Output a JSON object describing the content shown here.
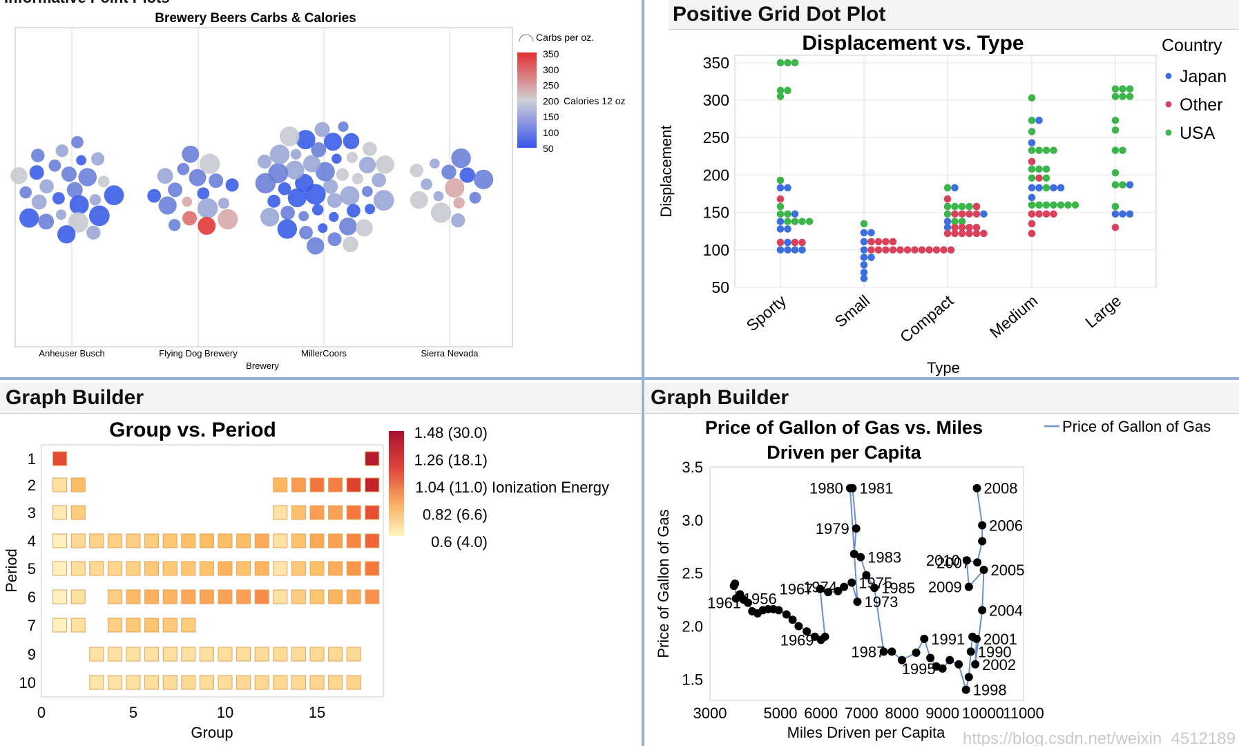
{
  "colors": {
    "japan": "#3b6fe0",
    "other": "#d9425a",
    "usa": "#3cb54a",
    "line": "#6a8fd0"
  },
  "panels": {
    "tl_header": "Informative Point Plots",
    "tr_header": "Positive Grid Dot Plot",
    "bl_header": "Graph Builder",
    "br_header": "Graph Builder"
  },
  "watermark": "https://blog.csdn.net/weixin_4512189",
  "chart_data": [
    {
      "id": "brewery",
      "type": "scatter",
      "title": "Brewery Beers Carbs & Calories",
      "xlabel": "Brewery",
      "categories": [
        "Anheuser Busch",
        "Flying Dog Brewery",
        "MillerCoors",
        "Sierra Nevada"
      ],
      "color_legend": {
        "title": "Carbs per oz.",
        "ticks": [
          "350",
          "300",
          "250",
          "200",
          "150",
          "100",
          "50"
        ]
      },
      "size_legend": {
        "title": "Calories 12 oz"
      },
      "cluster_counts": [
        26,
        18,
        48,
        14
      ]
    },
    {
      "id": "dotplot",
      "type": "scatter",
      "title": "Displacement vs. Type",
      "xlabel": "Type",
      "ylabel": "Displacement",
      "ylim": [
        50,
        360
      ],
      "yticks": [
        "350",
        "300",
        "250",
        "200",
        "150",
        "100",
        "50"
      ],
      "categories": [
        "Sporty",
        "Small",
        "Compact",
        "Medium",
        "Large"
      ],
      "legend": {
        "title": "Country",
        "items": [
          "Japan",
          "Other",
          "USA"
        ]
      },
      "series": [
        {
          "name": "Sporty",
          "rows": [
            [
              350,
              "UUU"
            ],
            [
              313,
              "UU"
            ],
            [
              305,
              "U"
            ],
            [
              193,
              "U"
            ],
            [
              183,
              "JJ"
            ],
            [
              168,
              "O"
            ],
            [
              158,
              "U"
            ],
            [
              148,
              "UUJ"
            ],
            [
              138,
              "JUUUU"
            ],
            [
              128,
              "JJ"
            ],
            [
              110,
              "OJOO"
            ],
            [
              100,
              "JJJJ"
            ]
          ]
        },
        {
          "name": "Small",
          "rows": [
            [
              135,
              "U"
            ],
            [
              123,
              "JJ"
            ],
            [
              111,
              "JOOOO"
            ],
            [
              100,
              "JOOOOOOOOOOOO"
            ],
            [
              90,
              "JJ"
            ],
            [
              80,
              "J"
            ],
            [
              70,
              "J"
            ],
            [
              62,
              "J"
            ]
          ]
        },
        {
          "name": "Compact",
          "rows": [
            [
              183,
              "UJ"
            ],
            [
              168,
              "O"
            ],
            [
              158,
              "UUUUO"
            ],
            [
              148,
              "UOOOOJ"
            ],
            [
              138,
              "JUU"
            ],
            [
              130,
              "JOOOO"
            ],
            [
              122,
              "OOOOOO"
            ]
          ]
        },
        {
          "name": "Medium",
          "rows": [
            [
              303,
              "U"
            ],
            [
              273,
              "UJ"
            ],
            [
              258,
              "U"
            ],
            [
              243,
              "J"
            ],
            [
              233,
              "UUUU"
            ],
            [
              218,
              "O"
            ],
            [
              208,
              "UUU"
            ],
            [
              196,
              "UOU"
            ],
            [
              183,
              "JJUJJ"
            ],
            [
              170,
              "J"
            ],
            [
              160,
              "UUUUUUU"
            ],
            [
              148,
              "OOOO"
            ],
            [
              135,
              "O"
            ],
            [
              122,
              "O"
            ]
          ]
        },
        {
          "name": "Large",
          "rows": [
            [
              315,
              "UUU"
            ],
            [
              305,
              "UUU"
            ],
            [
              273,
              "U"
            ],
            [
              260,
              "U"
            ],
            [
              233,
              "UU"
            ],
            [
              203,
              "U"
            ],
            [
              187,
              "UUJ"
            ],
            [
              158,
              "U"
            ],
            [
              148,
              "JJJ"
            ],
            [
              130,
              "O"
            ]
          ]
        }
      ]
    },
    {
      "id": "periodic",
      "type": "heatmap",
      "title": "Group vs. Period",
      "xlabel": "Group",
      "ylabel": "Period",
      "xticks": [
        "0",
        "5",
        "10",
        "15"
      ],
      "yticks": [
        "1",
        "2",
        "3",
        "4",
        "5",
        "6",
        "7",
        "9",
        "10"
      ],
      "legend": {
        "title": "Ionization Energy",
        "ticks": [
          "1.48 (30.0)",
          "1.26 (18.1)",
          "1.04 (11.0)",
          "0.82 (6.6)",
          "0.6 (4.0)"
        ]
      },
      "rows": [
        {
          "period": "1",
          "cells": [
            [
              1,
              1.17
            ],
            [
              18,
              1.42
            ]
          ]
        },
        {
          "period": "2",
          "cells": [
            [
              1,
              0.66
            ],
            [
              2,
              0.82
            ],
            [
              13,
              0.84
            ],
            [
              14,
              0.93
            ],
            [
              15,
              1.05
            ],
            [
              16,
              1.02
            ],
            [
              17,
              1.2
            ],
            [
              18,
              1.36
            ]
          ]
        },
        {
          "period": "3",
          "cells": [
            [
              1,
              0.63
            ],
            [
              2,
              0.76
            ],
            [
              13,
              0.66
            ],
            [
              14,
              0.81
            ],
            [
              15,
              0.92
            ],
            [
              16,
              0.91
            ],
            [
              17,
              1.04
            ],
            [
              18,
              1.16
            ]
          ]
        },
        {
          "period": "4",
          "cells": [
            [
              1,
              0.6
            ],
            [
              2,
              0.7
            ],
            [
              3,
              0.73
            ],
            [
              4,
              0.74
            ],
            [
              5,
              0.75
            ],
            [
              6,
              0.76
            ],
            [
              7,
              0.78
            ],
            [
              8,
              0.81
            ],
            [
              9,
              0.82
            ],
            [
              10,
              0.82
            ],
            [
              11,
              0.82
            ],
            [
              12,
              0.88
            ],
            [
              13,
              0.66
            ],
            [
              14,
              0.8
            ],
            [
              15,
              0.89
            ],
            [
              16,
              0.91
            ],
            [
              17,
              1.0
            ],
            [
              18,
              1.1
            ]
          ]
        },
        {
          "period": "5",
          "cells": [
            [
              1,
              0.6
            ],
            [
              2,
              0.68
            ],
            [
              3,
              0.7
            ],
            [
              4,
              0.72
            ],
            [
              5,
              0.74
            ],
            [
              6,
              0.77
            ],
            [
              7,
              0.77
            ],
            [
              8,
              0.79
            ],
            [
              9,
              0.8
            ],
            [
              10,
              0.86
            ],
            [
              11,
              0.8
            ],
            [
              12,
              0.85
            ],
            [
              13,
              0.65
            ],
            [
              14,
              0.77
            ],
            [
              15,
              0.81
            ],
            [
              16,
              0.87
            ],
            [
              17,
              0.95
            ],
            [
              18,
              1.04
            ]
          ]
        },
        {
          "period": "6",
          "cells": [
            [
              1,
              0.6
            ],
            [
              2,
              0.67
            ],
            [
              4,
              0.75
            ],
            [
              5,
              0.83
            ],
            [
              6,
              0.86
            ],
            [
              7,
              0.85
            ],
            [
              8,
              0.89
            ],
            [
              9,
              0.9
            ],
            [
              10,
              0.91
            ],
            [
              11,
              0.92
            ],
            [
              12,
              0.98
            ],
            [
              13,
              0.66
            ],
            [
              14,
              0.75
            ],
            [
              15,
              0.79
            ],
            [
              16,
              0.85
            ],
            [
              17,
              0.87
            ],
            [
              18,
              0.96
            ]
          ]
        },
        {
          "period": "7",
          "cells": [
            [
              1,
              0.6
            ],
            [
              2,
              0.67
            ],
            [
              4,
              0.74
            ],
            [
              5,
              0.77
            ],
            [
              6,
              0.79
            ],
            [
              7,
              0.77
            ],
            [
              8,
              0.76
            ]
          ]
        },
        {
          "period": "9",
          "cells": [
            [
              3,
              0.66
            ],
            [
              4,
              0.66
            ],
            [
              5,
              0.66
            ],
            [
              6,
              0.66
            ],
            [
              7,
              0.67
            ],
            [
              8,
              0.67
            ],
            [
              9,
              0.67
            ],
            [
              10,
              0.68
            ],
            [
              11,
              0.68
            ],
            [
              12,
              0.69
            ],
            [
              13,
              0.69
            ],
            [
              14,
              0.69
            ],
            [
              15,
              0.7
            ],
            [
              16,
              0.7
            ],
            [
              17,
              0.7
            ]
          ]
        },
        {
          "period": "10",
          "cells": [
            [
              3,
              0.65
            ],
            [
              4,
              0.66
            ],
            [
              5,
              0.67
            ],
            [
              6,
              0.68
            ],
            [
              7,
              0.69
            ],
            [
              8,
              0.7
            ],
            [
              9,
              0.69
            ],
            [
              10,
              0.69
            ],
            [
              11,
              0.7
            ],
            [
              12,
              0.7
            ],
            [
              13,
              0.7
            ],
            [
              14,
              0.7
            ],
            [
              15,
              0.71
            ],
            [
              16,
              0.71
            ],
            [
              17,
              0.72
            ]
          ]
        }
      ]
    },
    {
      "id": "gas",
      "type": "line",
      "title": "Price of Gallon of Gas vs. Miles Driven per Capita",
      "title_lines": [
        "Price of Gallon of Gas vs. Miles",
        "Driven per Capita"
      ],
      "xlabel": "Miles Driven per Capita",
      "ylabel": "Price of Gallon of Gas",
      "xlim": [
        3000,
        11000
      ],
      "ylim": [
        1.3,
        3.5
      ],
      "xticks": [
        "3000",
        "5000",
        "6000",
        "7000",
        "8000",
        "9000",
        "10000",
        "11000"
      ],
      "yticks": [
        "3.5",
        "3.0",
        "2.5",
        "2.0",
        "1.5"
      ],
      "legend": [
        "Price of Gallon of Gas"
      ],
      "points": [
        {
          "x": 3680,
          "y": 2.38
        },
        {
          "x": 3710,
          "y": 2.4
        },
        {
          "x": 3740,
          "y": 2.26,
          "label": "1956"
        },
        {
          "x": 3850,
          "y": 2.3
        },
        {
          "x": 3950,
          "y": 2.25
        },
        {
          "x": 4080,
          "y": 2.22,
          "label": "1961"
        },
        {
          "x": 4200,
          "y": 2.14
        },
        {
          "x": 4350,
          "y": 2.12
        },
        {
          "x": 4500,
          "y": 2.15
        },
        {
          "x": 4650,
          "y": 2.16
        },
        {
          "x": 4800,
          "y": 2.16
        },
        {
          "x": 4950,
          "y": 2.15
        },
        {
          "x": 5150,
          "y": 2.11
        },
        {
          "x": 5300,
          "y": 2.06
        },
        {
          "x": 5450,
          "y": 2.0
        },
        {
          "x": 5650,
          "y": 1.95
        },
        {
          "x": 5850,
          "y": 1.9
        },
        {
          "x": 6000,
          "y": 1.87,
          "label": "1969"
        },
        {
          "x": 6100,
          "y": 1.9
        },
        {
          "x": 5980,
          "y": 2.35,
          "label": "1967"
        },
        {
          "x": 6180,
          "y": 2.32
        },
        {
          "x": 6420,
          "y": 2.33
        },
        {
          "x": 6570,
          "y": 2.37,
          "label": "1974"
        },
        {
          "x": 6760,
          "y": 2.41,
          "label": "1975"
        },
        {
          "x": 6900,
          "y": 2.23,
          "label": "1973"
        },
        {
          "x": 6720,
          "y": 3.3,
          "label": "1980"
        },
        {
          "x": 6780,
          "y": 3.3,
          "label": "1981"
        },
        {
          "x": 6870,
          "y": 2.92,
          "label": "1979"
        },
        {
          "x": 6820,
          "y": 2.68
        },
        {
          "x": 6980,
          "y": 2.65,
          "label": "1983"
        },
        {
          "x": 7120,
          "y": 2.48
        },
        {
          "x": 7320,
          "y": 2.36,
          "label": "1985"
        },
        {
          "x": 7550,
          "y": 1.76
        },
        {
          "x": 7750,
          "y": 1.76,
          "label": "1987"
        },
        {
          "x": 8000,
          "y": 1.68
        },
        {
          "x": 8350,
          "y": 1.75
        },
        {
          "x": 8550,
          "y": 1.88,
          "label": "1991"
        },
        {
          "x": 8700,
          "y": 1.7
        },
        {
          "x": 8850,
          "y": 1.62
        },
        {
          "x": 9000,
          "y": 1.6,
          "label": "1995"
        },
        {
          "x": 9180,
          "y": 1.68
        },
        {
          "x": 9400,
          "y": 1.64
        },
        {
          "x": 9580,
          "y": 1.4,
          "label": "1998"
        },
        {
          "x": 9650,
          "y": 1.52
        },
        {
          "x": 9700,
          "y": 1.76,
          "label": "1990"
        },
        {
          "x": 9740,
          "y": 1.9
        },
        {
          "x": 9840,
          "y": 1.88,
          "label": "2001"
        },
        {
          "x": 9810,
          "y": 1.64,
          "label": "2002"
        },
        {
          "x": 9980,
          "y": 2.15,
          "label": "2004"
        },
        {
          "x": 10020,
          "y": 2.53,
          "label": "2005"
        },
        {
          "x": 9650,
          "y": 2.37,
          "label": "2009"
        },
        {
          "x": 9600,
          "y": 2.62,
          "label": "2010"
        },
        {
          "x": 9860,
          "y": 2.6,
          "label": "2007"
        },
        {
          "x": 9980,
          "y": 2.8
        },
        {
          "x": 9980,
          "y": 2.95,
          "label": "2006"
        },
        {
          "x": 9850,
          "y": 3.3,
          "label": "2008"
        }
      ]
    }
  ]
}
